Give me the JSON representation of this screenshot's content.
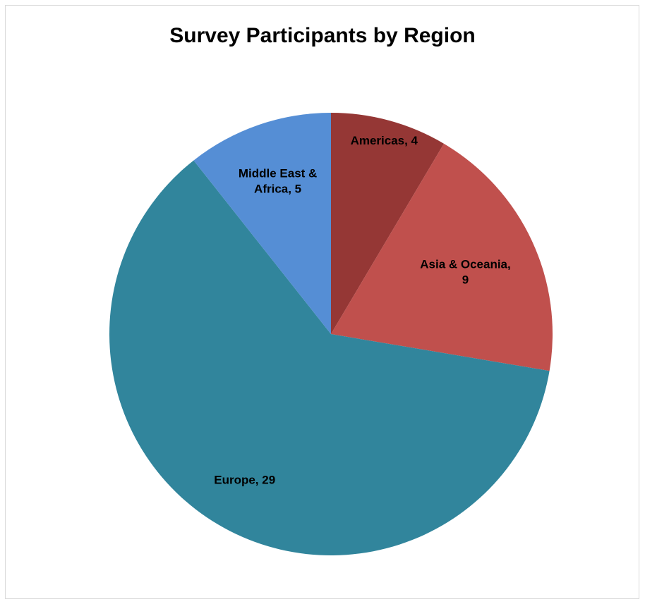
{
  "chart_data": {
    "type": "pie",
    "title": "Survey Participants by Region",
    "categories": [
      "Americas",
      "Asia & Oceania",
      "Europe",
      "Middle East & Africa"
    ],
    "values": [
      4,
      9,
      29,
      5
    ],
    "colors": [
      "#953735",
      "#C0504D",
      "#31859C",
      "#558ED5"
    ],
    "labels": [
      [
        "Americas, 4"
      ],
      [
        "Asia & Oceania,",
        "9"
      ],
      [
        "Europe, 29"
      ],
      [
        "Middle East &",
        "Africa, 5"
      ]
    ],
    "legend": "none",
    "start_angle": "12 o'clock",
    "direction": "clockwise"
  }
}
